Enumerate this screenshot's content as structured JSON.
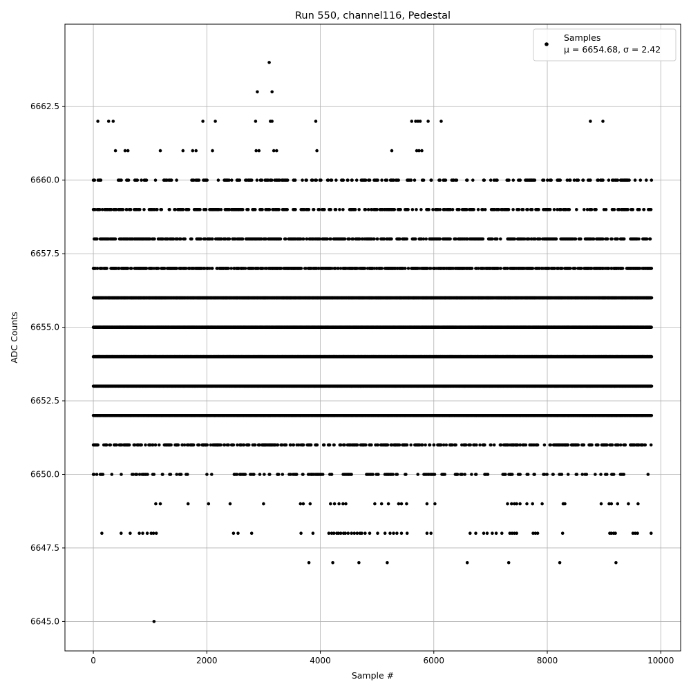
{
  "chart_data": {
    "type": "scatter",
    "title": "Run 550, channel116, Pedestal",
    "xlabel": "Sample #",
    "ylabel": "ADC Counts",
    "xlim": [
      -500,
      10350
    ],
    "ylim": [
      6644.0,
      6665.3
    ],
    "xticks": [
      0,
      2000,
      4000,
      6000,
      8000,
      10000
    ],
    "xtick_labels": [
      "0",
      "2000",
      "4000",
      "6000",
      "8000",
      "10000"
    ],
    "yticks": [
      6645.0,
      6647.5,
      6650.0,
      6652.5,
      6655.0,
      6657.5,
      6660.0,
      6662.5
    ],
    "ytick_labels": [
      "6645.0",
      "6647.5",
      "6650.0",
      "6652.5",
      "6655.0",
      "6657.5",
      "6660.0",
      "6662.5"
    ],
    "grid": true,
    "legend": {
      "placement": "top-right",
      "label": "Samples",
      "stats": "μ = 6654.68, σ = 2.42"
    },
    "marker_color": "#000000",
    "sample_range": [
      0,
      9840
    ],
    "levels": [
      {
        "y": 6664,
        "density": 0.0,
        "x": [
          3100
        ]
      },
      {
        "y": 6663,
        "density": 0.0,
        "x": [
          2890,
          3150
        ]
      },
      {
        "y": 6662,
        "density": 0.0,
        "x": [
          80,
          270,
          350,
          1930,
          2150,
          2860,
          3120,
          3150,
          3920,
          5610,
          5680,
          5720,
          5760,
          5900,
          6130,
          8760,
          8980
        ]
      },
      {
        "y": 6661,
        "density": 0.0,
        "x": [
          390,
          560,
          610,
          1180,
          1580,
          1750,
          1810,
          2100,
          2870,
          2920,
          3180,
          3230,
          3940,
          5260,
          5700,
          5740,
          5790
        ]
      },
      {
        "y": 6660,
        "density": 0.35
      },
      {
        "y": 6659,
        "density": 0.5
      },
      {
        "y": 6658,
        "density": 0.7
      },
      {
        "y": 6657,
        "density": 0.8
      },
      {
        "y": 6656,
        "density": 1.0
      },
      {
        "y": 6655,
        "density": 1.0
      },
      {
        "y": 6654,
        "density": 0.95
      },
      {
        "y": 6653,
        "density": 1.0
      },
      {
        "y": 6652,
        "density": 0.95
      },
      {
        "y": 6651,
        "density": 0.55
      },
      {
        "y": 6650,
        "density": 0.3
      },
      {
        "y": 6649,
        "density": 0.0,
        "x": [
          1100,
          1180,
          1670,
          2030,
          2410,
          3000,
          3650,
          3700,
          3820,
          4180,
          4250,
          4330,
          4400,
          4450,
          4960,
          5080,
          5200,
          5380,
          5430,
          5520,
          5880,
          6020,
          7300,
          7370,
          7420,
          7460,
          7520,
          7640,
          7740,
          7910,
          8280,
          8310,
          8950,
          9090,
          9130,
          9240,
          9430,
          9600
        ]
      },
      {
        "y": 6648,
        "density": 0.0,
        "x": [
          150,
          490,
          650,
          810,
          870,
          950,
          1020,
          1060,
          1110,
          2470,
          2550,
          2790,
          3660,
          3870,
          4150,
          4200,
          4240,
          4290,
          4320,
          4360,
          4410,
          4440,
          4490,
          4550,
          4600,
          4650,
          4700,
          4730,
          4790,
          4870,
          5010,
          5140,
          5230,
          5290,
          5350,
          5430,
          5530,
          5880,
          5950,
          6640,
          6740,
          6880,
          6940,
          7030,
          7100,
          7200,
          7340,
          7380,
          7420,
          7460,
          7750,
          7790,
          7830,
          8270,
          9100,
          9130,
          9170,
          9200,
          9510,
          9550,
          9590,
          9830
        ]
      },
      {
        "y": 6647,
        "density": 0.0,
        "x": [
          3800,
          4220,
          4680,
          5180,
          6590,
          7320,
          8220,
          9210
        ]
      },
      {
        "y": 6645,
        "density": 0.0,
        "x": [
          1070
        ]
      }
    ]
  }
}
